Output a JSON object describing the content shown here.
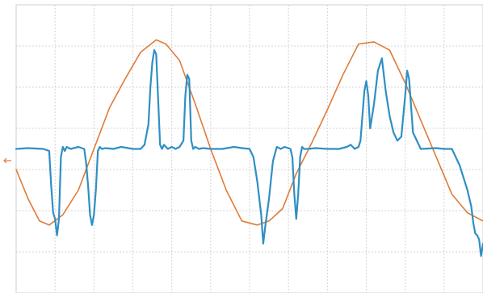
{
  "chart_data": {
    "type": "line",
    "title": "",
    "xlabel": "",
    "ylabel": "",
    "grid": true,
    "x_divisions": 12,
    "y_divisions": 7,
    "xlim": [
      0,
      12
    ],
    "ylim": [
      -3.5,
      3.5
    ],
    "channel_marker_color": "#e07b39",
    "series": [
      {
        "color": "#e07b39",
        "x": [
          0,
          0.3,
          0.6,
          0.85,
          1.2,
          1.6,
          2.0,
          2.4,
          2.8,
          3.2,
          3.6,
          3.85,
          4.2,
          4.6,
          5.0,
          5.4,
          5.8,
          6.2,
          6.5,
          6.85,
          7.2,
          7.6,
          8.0,
          8.4,
          8.8,
          9.2,
          9.6,
          10.0,
          10.4,
          10.8,
          11.2,
          11.6,
          12.0
        ],
        "y": [
          -0.5,
          -1.2,
          -1.75,
          -1.85,
          -1.6,
          -1.0,
          0.0,
          1.0,
          1.7,
          2.35,
          2.65,
          2.55,
          2.15,
          1.1,
          0.0,
          -1.0,
          -1.75,
          -1.85,
          -1.75,
          -1.45,
          -0.6,
          0.15,
          0.95,
          1.8,
          2.55,
          2.6,
          2.4,
          1.6,
          0.7,
          -0.2,
          -1.1,
          -1.55,
          -1.75
        ]
      },
      {
        "color": "#2f8fc3",
        "x": [
          0,
          0.3,
          0.7,
          0.85,
          0.9,
          0.95,
          1.0,
          1.05,
          1.1,
          1.15,
          1.2,
          1.25,
          1.3,
          1.4,
          1.6,
          1.75,
          1.8,
          1.85,
          1.9,
          1.95,
          2.0,
          2.05,
          2.1,
          2.15,
          2.2,
          2.3,
          2.5,
          2.7,
          3.0,
          3.2,
          3.3,
          3.4,
          3.45,
          3.5,
          3.55,
          3.6,
          3.65,
          3.7,
          3.75,
          3.8,
          3.9,
          4.0,
          4.1,
          4.2,
          4.3,
          4.35,
          4.4,
          4.45,
          4.5,
          4.55,
          4.6,
          4.7,
          4.8,
          5.0,
          5.3,
          5.6,
          5.8,
          6.0,
          6.1,
          6.2,
          6.3,
          6.35,
          6.4,
          6.5,
          6.6,
          6.7,
          6.8,
          6.9,
          7.05,
          7.1,
          7.15,
          7.2,
          7.25,
          7.3,
          7.35,
          7.4,
          7.5,
          7.7,
          8.0,
          8.3,
          8.5,
          8.6,
          8.7,
          8.8,
          8.85,
          8.9,
          8.95,
          9.0,
          9.05,
          9.1,
          9.2,
          9.3,
          9.4,
          9.5,
          9.6,
          9.7,
          9.8,
          9.9,
          10.0,
          10.05,
          10.1,
          10.2,
          10.4,
          10.8,
          11.0,
          11.2,
          11.3,
          11.4,
          11.5,
          11.6,
          11.7,
          11.75,
          11.8,
          11.85,
          11.9,
          11.95,
          12.0
        ],
        "y": [
          0.0,
          0.02,
          0.0,
          -0.05,
          -0.9,
          -1.55,
          -1.7,
          -2.1,
          -1.7,
          -0.2,
          0.05,
          -0.05,
          0.05,
          0.0,
          0.05,
          0.0,
          -0.35,
          -0.9,
          -1.6,
          -1.85,
          -1.6,
          -1.0,
          -0.05,
          0.05,
          0.0,
          0.02,
          0.0,
          0.05,
          0.0,
          0.0,
          0.1,
          0.6,
          1.5,
          2.1,
          2.4,
          2.3,
          1.2,
          0.1,
          0.0,
          0.1,
          0.0,
          0.05,
          0.0,
          0.05,
          0.2,
          1.3,
          1.8,
          1.7,
          0.2,
          0.0,
          0.05,
          0.0,
          0.02,
          0.0,
          0.0,
          0.05,
          0.02,
          0.0,
          -0.2,
          -0.8,
          -1.6,
          -2.3,
          -1.9,
          -1.2,
          -0.3,
          0.05,
          0.0,
          0.05,
          0.0,
          -0.2,
          -1.1,
          -1.7,
          -1.1,
          -0.2,
          0.05,
          0.0,
          0.0,
          0.02,
          0.0,
          0.0,
          0.05,
          0.1,
          0.0,
          0.05,
          0.2,
          0.8,
          1.4,
          1.65,
          1.3,
          0.5,
          1.1,
          1.9,
          2.2,
          1.4,
          0.8,
          0.4,
          0.2,
          0.3,
          1.3,
          1.9,
          1.7,
          0.4,
          0.0,
          0.02,
          0.0,
          0.0,
          -0.2,
          -0.4,
          -0.7,
          -1.0,
          -1.4,
          -1.8,
          -2.05,
          -2.1,
          -2.2,
          -2.6,
          -2.3
        ]
      }
    ]
  }
}
